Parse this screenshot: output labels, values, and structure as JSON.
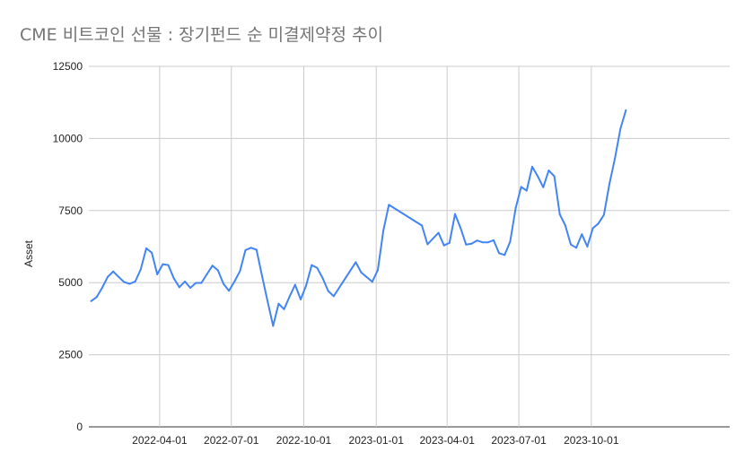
{
  "chart_data": {
    "type": "line",
    "title": "CME 비트코인 선물 : 장기펀드 순 미결제약정 추이",
    "xlabel": "",
    "ylabel": "Asset",
    "ylim": [
      0,
      12500
    ],
    "yticks": [
      "0",
      "2500",
      "5000",
      "7500",
      "10000",
      "12500"
    ],
    "xticks": [
      "2022-04-01",
      "2022-07-01",
      "2022-10-01",
      "2023-01-01",
      "2023-04-01",
      "2023-07-01",
      "2023-10-01"
    ],
    "grid": true,
    "legend": "none",
    "line_color": "#4285f4",
    "series": [
      {
        "values": [
          [
            "2022-01-04",
            4360
          ],
          [
            "2022-01-11",
            4500
          ],
          [
            "2022-01-18",
            4820
          ],
          [
            "2022-01-25",
            5200
          ],
          [
            "2022-02-01",
            5390
          ],
          [
            "2022-02-08",
            5200
          ],
          [
            "2022-02-15",
            5020
          ],
          [
            "2022-02-22",
            4960
          ],
          [
            "2022-03-01",
            5040
          ],
          [
            "2022-03-08",
            5460
          ],
          [
            "2022-03-15",
            6190
          ],
          [
            "2022-03-22",
            6040
          ],
          [
            "2022-03-29",
            5290
          ],
          [
            "2022-04-05",
            5640
          ],
          [
            "2022-04-12",
            5610
          ],
          [
            "2022-04-19",
            5150
          ],
          [
            "2022-04-26",
            4840
          ],
          [
            "2022-05-03",
            5040
          ],
          [
            "2022-05-10",
            4820
          ],
          [
            "2022-05-17",
            4990
          ],
          [
            "2022-05-24",
            4990
          ],
          [
            "2022-05-31",
            5290
          ],
          [
            "2022-06-07",
            5590
          ],
          [
            "2022-06-14",
            5430
          ],
          [
            "2022-06-21",
            4960
          ],
          [
            "2022-06-28",
            4720
          ],
          [
            "2022-07-05",
            5040
          ],
          [
            "2022-07-12",
            5400
          ],
          [
            "2022-07-19",
            6130
          ],
          [
            "2022-07-26",
            6210
          ],
          [
            "2022-08-02",
            6140
          ],
          [
            "2022-08-09",
            5230
          ],
          [
            "2022-08-16",
            4360
          ],
          [
            "2022-08-23",
            3500
          ],
          [
            "2022-08-30",
            4270
          ],
          [
            "2022-09-06",
            4080
          ],
          [
            "2022-09-13",
            4520
          ],
          [
            "2022-09-20",
            4930
          ],
          [
            "2022-09-27",
            4420
          ],
          [
            "2022-10-04",
            4900
          ],
          [
            "2022-10-11",
            5610
          ],
          [
            "2022-10-18",
            5510
          ],
          [
            "2022-10-25",
            5160
          ],
          [
            "2022-11-01",
            4710
          ],
          [
            "2022-11-08",
            4530
          ],
          [
            "2022-12-06",
            5710
          ],
          [
            "2022-12-13",
            5350
          ],
          [
            "2022-12-27",
            5030
          ],
          [
            "2023-01-03",
            5440
          ],
          [
            "2023-01-10",
            6800
          ],
          [
            "2023-01-17",
            7700
          ],
          [
            "2023-02-28",
            6980
          ],
          [
            "2023-03-07",
            6330
          ],
          [
            "2023-03-21",
            6730
          ],
          [
            "2023-03-28",
            6290
          ],
          [
            "2023-04-04",
            6380
          ],
          [
            "2023-04-11",
            7380
          ],
          [
            "2023-04-18",
            6900
          ],
          [
            "2023-04-25",
            6320
          ],
          [
            "2023-05-02",
            6350
          ],
          [
            "2023-05-09",
            6460
          ],
          [
            "2023-05-16",
            6400
          ],
          [
            "2023-05-23",
            6400
          ],
          [
            "2023-05-30",
            6470
          ],
          [
            "2023-06-06",
            6020
          ],
          [
            "2023-06-13",
            5960
          ],
          [
            "2023-06-20",
            6420
          ],
          [
            "2023-06-27",
            7590
          ],
          [
            "2023-07-04",
            8320
          ],
          [
            "2023-07-11",
            8190
          ],
          [
            "2023-07-18",
            9020
          ],
          [
            "2023-07-25",
            8690
          ],
          [
            "2023-08-01",
            8310
          ],
          [
            "2023-08-08",
            8890
          ],
          [
            "2023-08-15",
            8690
          ],
          [
            "2023-08-22",
            7370
          ],
          [
            "2023-08-29",
            6990
          ],
          [
            "2023-09-05",
            6320
          ],
          [
            "2023-09-12",
            6210
          ],
          [
            "2023-09-19",
            6680
          ],
          [
            "2023-09-26",
            6250
          ],
          [
            "2023-10-03",
            6890
          ],
          [
            "2023-10-10",
            7050
          ],
          [
            "2023-10-17",
            7350
          ],
          [
            "2023-10-24",
            8420
          ],
          [
            "2023-10-31",
            9300
          ],
          [
            "2023-11-07",
            10340
          ],
          [
            "2023-11-14",
            10980
          ]
        ]
      }
    ]
  }
}
